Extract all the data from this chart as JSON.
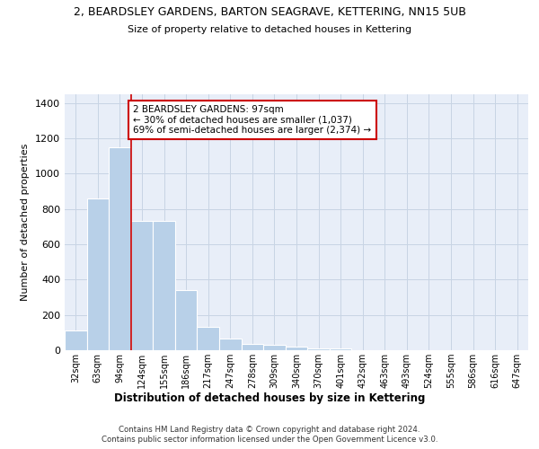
{
  "title": "2, BEARDSLEY GARDENS, BARTON SEAGRAVE, KETTERING, NN15 5UB",
  "subtitle": "Size of property relative to detached houses in Kettering",
  "xlabel": "Distribution of detached houses by size in Kettering",
  "ylabel": "Number of detached properties",
  "categories": [
    "32sqm",
    "63sqm",
    "94sqm",
    "124sqm",
    "155sqm",
    "186sqm",
    "217sqm",
    "247sqm",
    "278sqm",
    "309sqm",
    "340sqm",
    "370sqm",
    "401sqm",
    "432sqm",
    "463sqm",
    "493sqm",
    "524sqm",
    "555sqm",
    "586sqm",
    "616sqm",
    "647sqm"
  ],
  "values": [
    110,
    860,
    1150,
    735,
    735,
    340,
    130,
    65,
    35,
    30,
    20,
    10,
    10,
    0,
    0,
    0,
    0,
    0,
    0,
    0,
    0
  ],
  "bar_color": "#b8d0e8",
  "bar_edgecolor": "#ffffff",
  "grid_color": "#c8d4e4",
  "background_color": "#e8eef8",
  "vline_x": 2.5,
  "vline_color": "#cc0000",
  "vline_lw": 1.2,
  "annotation_text": "2 BEARDSLEY GARDENS: 97sqm\n← 30% of detached houses are smaller (1,037)\n69% of semi-detached houses are larger (2,374) →",
  "annotation_box_color": "#cc0000",
  "ylim": [
    0,
    1450
  ],
  "yticks": [
    0,
    200,
    400,
    600,
    800,
    1000,
    1200,
    1400
  ],
  "footer1": "Contains HM Land Registry data © Crown copyright and database right 2024.",
  "footer2": "Contains public sector information licensed under the Open Government Licence v3.0."
}
